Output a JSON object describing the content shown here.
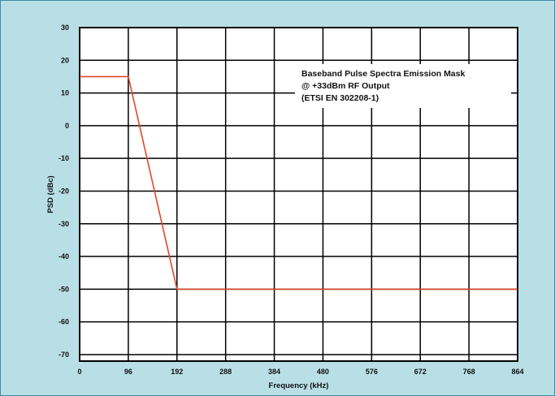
{
  "chart_data": {
    "type": "line",
    "title": "",
    "xlabel": "Frequency (kHz)",
    "ylabel": "PSD (dBc)",
    "x_ticks": [
      0,
      96,
      192,
      288,
      384,
      480,
      576,
      672,
      768,
      864
    ],
    "y_ticks": [
      30,
      20,
      10,
      0,
      -10,
      -20,
      -30,
      -40,
      -50,
      -60,
      -70
    ],
    "x_tick_labels": [
      "0",
      "96",
      "192",
      "288",
      "384",
      "480",
      "576",
      "672",
      "768",
      "864"
    ],
    "y_tick_labels": [
      "30",
      "20",
      "10",
      "0",
      "-10",
      "-20",
      "-30",
      "-40",
      "-50",
      "-60",
      "-70"
    ],
    "xlim": [
      0,
      864
    ],
    "ylim": [
      -72,
      30
    ],
    "grid": true,
    "legend_position": "top-right",
    "annotation_lines": [
      "Baseband Pulse Spectra Emission Mask",
      "@ +33dBm RF Output",
      "(ETSI EN 302208-1)"
    ],
    "series": [
      {
        "x": [
          0,
          96,
          192,
          864
        ],
        "y": [
          15,
          15,
          -50,
          -50
        ],
        "color": "#e0482a"
      }
    ],
    "colors": {
      "background": "#b9dfe6",
      "plot_area": "#ffffff",
      "grid": "#000000",
      "frame": "#3f8aa6"
    }
  }
}
